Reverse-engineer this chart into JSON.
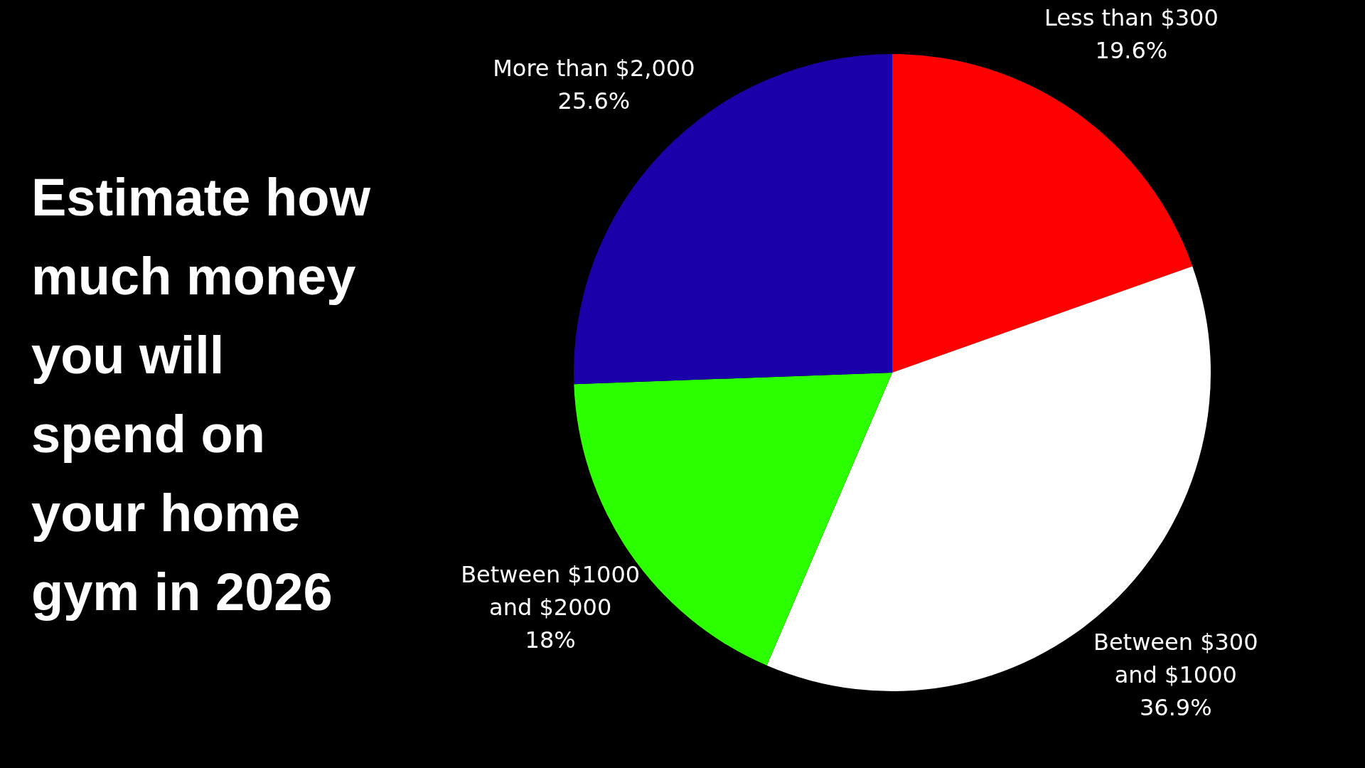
{
  "chart_data": {
    "type": "pie",
    "title": "Estimate how much money you will spend on your home gym in 2026",
    "categories": [
      "Less than $300",
      "Between $300 and $1000",
      "Between $1000 and $2000",
      "More than $2,000"
    ],
    "values": [
      19.6,
      36.9,
      18,
      25.6
    ],
    "value_labels": [
      "19.6%",
      "36.9%",
      "18%",
      "25.6%"
    ],
    "colors": [
      "#ff0000",
      "#ffffff",
      "#2bff00",
      "#1a00a8"
    ]
  }
}
